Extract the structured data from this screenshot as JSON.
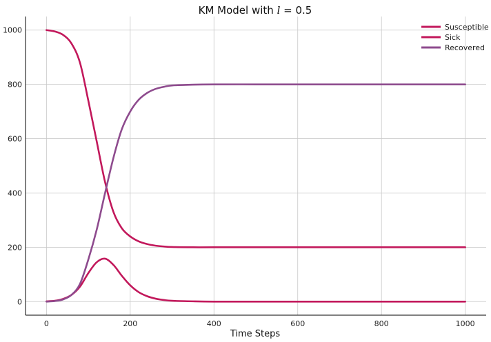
{
  "chart_data": {
    "type": "line",
    "title": "KM Model with l = 0.5",
    "title_prefix": "KM Model with ",
    "title_var": "l",
    "title_suffix": " = 0.5",
    "xlabel": "Time Steps",
    "ylabel": "",
    "xlim": [
      -50,
      1050
    ],
    "ylim": [
      -50,
      1050
    ],
    "xticks": [
      0,
      200,
      400,
      600,
      800,
      1000
    ],
    "yticks": [
      0,
      200,
      400,
      600,
      800,
      1000
    ],
    "grid": true,
    "legend_position": "top-right",
    "series": [
      {
        "name": "Susceptible",
        "color": "#c2185b",
        "x": [
          0,
          20,
          40,
          60,
          80,
          100,
          120,
          140,
          160,
          180,
          200,
          220,
          240,
          260,
          280,
          300,
          350,
          400,
          500,
          600,
          800,
          1000
        ],
        "values": [
          1000,
          995,
          982,
          950,
          880,
          740,
          590,
          440,
          330,
          270,
          240,
          222,
          212,
          206,
          203,
          201,
          200,
          200,
          200,
          200,
          200,
          200
        ]
      },
      {
        "name": "Sick",
        "color": "#c2185b",
        "x": [
          0,
          20,
          40,
          60,
          80,
          100,
          120,
          140,
          160,
          180,
          200,
          220,
          240,
          260,
          280,
          300,
          350,
          400,
          500,
          600,
          800,
          1000
        ],
        "values": [
          1,
          3,
          10,
          25,
          55,
          105,
          145,
          158,
          135,
          95,
          60,
          35,
          20,
          11,
          6,
          3,
          1,
          0,
          0,
          0,
          0,
          0
        ]
      },
      {
        "name": "Recovered",
        "color": "#8e4b8e",
        "x": [
          0,
          20,
          40,
          60,
          80,
          100,
          120,
          140,
          160,
          180,
          200,
          220,
          240,
          260,
          280,
          300,
          350,
          400,
          500,
          600,
          800,
          1000
        ],
        "values": [
          0,
          2,
          8,
          25,
          65,
          155,
          265,
          400,
          530,
          635,
          700,
          743,
          768,
          783,
          791,
          796,
          799,
          800,
          800,
          800,
          800,
          800
        ]
      }
    ]
  }
}
